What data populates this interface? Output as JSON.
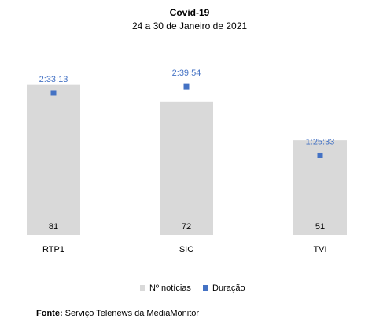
{
  "chart_data": {
    "type": "bar",
    "title": "Covid-19",
    "subtitle": "24 a 30 de Janeiro de 2021",
    "categories": [
      "RTP1",
      "SIC",
      "TVI"
    ],
    "series": [
      {
        "name": "Nº notícias",
        "type": "bar",
        "color": "#d9d9d9",
        "values": [
          81,
          72,
          51
        ],
        "labels": [
          "81",
          "72",
          "51"
        ]
      },
      {
        "name": "Duração",
        "type": "scatter",
        "color": "#4472c4",
        "values_seconds": [
          9193,
          9594,
          5133
        ],
        "labels": [
          "2:33:13",
          "2:39:54",
          "1:25:33"
        ]
      }
    ],
    "ylim": [
      0,
      100
    ],
    "y2lim": [
      0,
      12000
    ],
    "legend": "bottom",
    "grid": false
  },
  "source": {
    "label": "Fonte:",
    "text": "Serviço Telenews da MediaMonitor"
  },
  "colors": {
    "bar": "#d9d9d9",
    "marker": "#4472c4",
    "marker_label": "#4472c4"
  }
}
